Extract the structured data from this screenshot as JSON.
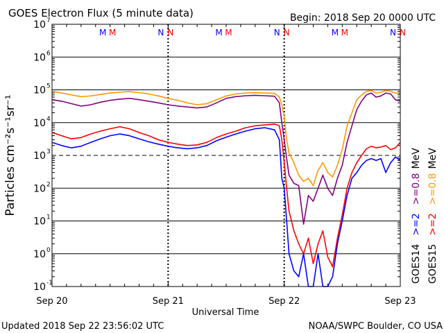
{
  "chart_data": {
    "type": "line",
    "title": "GOES Electron Flux (5 minute data)",
    "begin_text": "Begin: 2018 Sep 20 0000 UTC",
    "xlabel": "Universal Time",
    "ylabel": "Particles cm⁻²s⁻¹sr⁻¹",
    "y_scale": "log",
    "ylim": [
      0.1,
      10000000
    ],
    "y_ticks": [
      {
        "base": "10",
        "exp": "-1"
      },
      {
        "base": "10",
        "exp": "0"
      },
      {
        "base": "10",
        "exp": "1"
      },
      {
        "base": "10",
        "exp": "2"
      },
      {
        "base": "10",
        "exp": "3"
      },
      {
        "base": "10",
        "exp": "4"
      },
      {
        "base": "10",
        "exp": "5"
      },
      {
        "base": "10",
        "exp": "6"
      },
      {
        "base": "10",
        "exp": "7"
      }
    ],
    "x_unit": "hours since 2018 Sep 20 0000 UTC",
    "xlim": [
      0,
      72
    ],
    "x_ticks": [
      {
        "label": "Sep 20",
        "value": 0
      },
      {
        "label": "Sep 21",
        "value": 24
      },
      {
        "label": "Sep 22",
        "value": 48
      },
      {
        "label": "Sep 23",
        "value": 72
      }
    ],
    "threshold": 1000,
    "grid": true,
    "markers": [
      {
        "label": "M",
        "hour": 10.5,
        "color": "#0000ff"
      },
      {
        "label": "M",
        "hour": 12.5,
        "color": "#ff0000"
      },
      {
        "label": "N",
        "hour": 22.5,
        "color": "#0000ff"
      },
      {
        "label": "N",
        "hour": 24.5,
        "color": "#ff0000"
      },
      {
        "label": "M",
        "hour": 34.5,
        "color": "#0000ff"
      },
      {
        "label": "M",
        "hour": 36.5,
        "color": "#ff0000"
      },
      {
        "label": "N",
        "hour": 46.5,
        "color": "#0000ff"
      },
      {
        "label": "N",
        "hour": 48.5,
        "color": "#ff0000"
      },
      {
        "label": "M",
        "hour": 58.5,
        "color": "#0000ff"
      },
      {
        "label": "M",
        "hour": 60.5,
        "color": "#ff0000"
      },
      {
        "label": "N",
        "hour": 70.5,
        "color": "#0000ff"
      },
      {
        "label": "N",
        "hour": 72.5,
        "color": "#ff0000"
      }
    ],
    "legend": [
      {
        "column": "GOES14",
        "parts": [
          {
            "text": "GOES14",
            "color": "#000000"
          },
          {
            "text": ">=2",
            "color": "#0000ff"
          },
          {
            "text": ">=0.8 MeV",
            "color": "#800080",
            "unit_color": "#000000"
          }
        ]
      },
      {
        "column": "GOES15",
        "parts": [
          {
            "text": "GOES15",
            "color": "#000000"
          },
          {
            "text": ">=2",
            "color": "#ff0000"
          },
          {
            "text": ">=0.8 MeV",
            "color": "#ff9900",
            "unit_color": "#000000"
          }
        ]
      }
    ],
    "series": [
      {
        "name": "GOES15 >=0.8 MeV",
        "color": "#ff9900",
        "x": [
          0,
          2,
          4,
          6,
          8,
          10,
          12,
          14,
          16,
          18,
          20,
          22,
          24,
          26,
          28,
          30,
          32,
          34,
          36,
          38,
          40,
          42,
          44,
          46,
          47,
          47.5,
          48,
          48.5,
          49,
          50,
          51,
          52,
          53,
          54,
          55,
          56,
          57,
          58,
          59,
          60,
          61,
          62,
          63,
          64,
          65,
          66,
          67,
          68,
          69,
          70,
          71,
          72
        ],
        "y": [
          90000,
          80000,
          70000,
          62000,
          65000,
          72000,
          80000,
          85000,
          88000,
          82000,
          75000,
          65000,
          55000,
          48000,
          40000,
          35000,
          38000,
          50000,
          65000,
          75000,
          80000,
          82000,
          80000,
          78000,
          60000,
          35000,
          15000,
          3000,
          1200,
          600,
          250,
          160,
          200,
          120,
          350,
          600,
          300,
          220,
          500,
          1500,
          8000,
          20000,
          50000,
          70000,
          90000,
          95000,
          80000,
          85000,
          95000,
          90000,
          80000,
          75000
        ]
      },
      {
        "name": "GOES14 >=0.8 MeV",
        "color": "#800080",
        "x": [
          0,
          2,
          4,
          6,
          8,
          10,
          12,
          14,
          16,
          18,
          20,
          22,
          24,
          26,
          28,
          30,
          32,
          34,
          36,
          38,
          40,
          42,
          44,
          46,
          47,
          47.5,
          48,
          48.5,
          49,
          50,
          51,
          52,
          53,
          54,
          55,
          56,
          57,
          58,
          59,
          60,
          61,
          62,
          63,
          64,
          65,
          66,
          67,
          68,
          69,
          70,
          71,
          72
        ],
        "y": [
          50000,
          45000,
          38000,
          32000,
          35000,
          42000,
          48000,
          52000,
          55000,
          50000,
          45000,
          40000,
          35000,
          32000,
          30000,
          28000,
          30000,
          40000,
          55000,
          62000,
          66000,
          68000,
          66000,
          64000,
          40000,
          10000,
          3000,
          800,
          250,
          140,
          120,
          8,
          60,
          40,
          100,
          250,
          100,
          60,
          200,
          500,
          2500,
          8000,
          25000,
          45000,
          70000,
          80000,
          60000,
          65000,
          80000,
          75000,
          50000,
          45000
        ]
      },
      {
        "name": "GOES15 >=2 MeV",
        "color": "#ff0000",
        "x": [
          0,
          2,
          4,
          6,
          8,
          10,
          12,
          14,
          16,
          18,
          20,
          22,
          24,
          26,
          28,
          30,
          32,
          34,
          36,
          38,
          40,
          42,
          44,
          46,
          47,
          47.5,
          48,
          48.5,
          49,
          50,
          51,
          52,
          53,
          54,
          55,
          56,
          57,
          58,
          59,
          60,
          61,
          62,
          63,
          64,
          65,
          66,
          67,
          68,
          69,
          70,
          71,
          72
        ],
        "y": [
          5000,
          4000,
          3200,
          3500,
          4500,
          5500,
          6500,
          7500,
          6500,
          5000,
          4000,
          3000,
          2500,
          2200,
          2000,
          2100,
          2500,
          3500,
          4500,
          5500,
          7000,
          8000,
          8500,
          9000,
          8000,
          3000,
          600,
          100,
          20,
          5,
          2,
          1,
          3,
          0.5,
          2,
          5,
          0.8,
          0.4,
          3,
          15,
          100,
          300,
          600,
          1000,
          1600,
          1900,
          1700,
          1800,
          2000,
          1500,
          1700,
          2500
        ]
      },
      {
        "name": "GOES14 >=2 MeV",
        "color": "#0000ff",
        "x": [
          0,
          2,
          4,
          6,
          8,
          10,
          12,
          14,
          16,
          18,
          20,
          22,
          24,
          26,
          28,
          30,
          32,
          34,
          36,
          38,
          40,
          42,
          44,
          46,
          47,
          47.5,
          48,
          48.5,
          49,
          50,
          51,
          52,
          53,
          54,
          55,
          56,
          57,
          58,
          59,
          60,
          61,
          62,
          63,
          64,
          65,
          66,
          67,
          68,
          69,
          70,
          71,
          72
        ],
        "y": [
          2500,
          2000,
          1700,
          1900,
          2500,
          3200,
          4000,
          4500,
          4000,
          3200,
          2600,
          2200,
          1900,
          1700,
          1600,
          1700,
          2000,
          2800,
          3600,
          4500,
          5500,
          6500,
          7000,
          6000,
          3000,
          200,
          100,
          10,
          1,
          0.3,
          0.2,
          1,
          0.1,
          0.1,
          1,
          0.1,
          0.1,
          0.2,
          2,
          10,
          60,
          200,
          300,
          500,
          700,
          800,
          700,
          800,
          300,
          600,
          900,
          700
        ]
      }
    ]
  },
  "footer": {
    "updated": "Updated 2018 Sep 22 23:56:02 UTC",
    "source": "NOAA/SWPC Boulder, CO USA"
  }
}
